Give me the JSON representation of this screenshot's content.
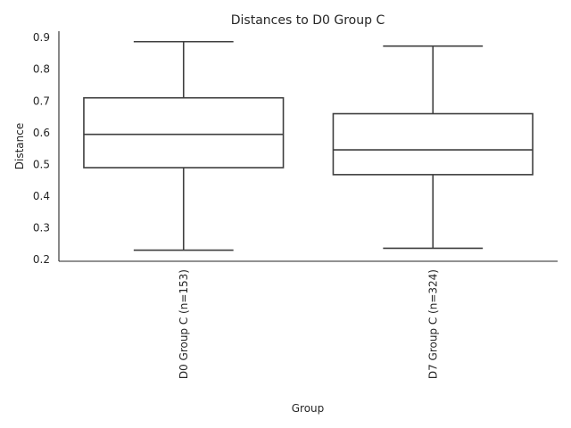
{
  "chart_data": {
    "type": "box",
    "title": "Distances to D0 Group C",
    "xlabel": "Group",
    "ylabel": "Distance",
    "ylim": [
      0.195,
      0.92
    ],
    "yticks": [
      0.2,
      0.3,
      0.4,
      0.5,
      0.6,
      0.7,
      0.8,
      0.9
    ],
    "categories": [
      "D0 Group C (n=153)",
      "D7 Group C (n=324)"
    ],
    "boxes": [
      {
        "category": "D0 Group C (n=153)",
        "whisker_low": 0.23,
        "q1": 0.49,
        "median": 0.595,
        "q3": 0.71,
        "whisker_high": 0.887
      },
      {
        "category": "D7 Group C (n=324)",
        "whisker_low": 0.236,
        "q1": 0.468,
        "median": 0.546,
        "q3": 0.66,
        "whisker_high": 0.873
      }
    ],
    "grid": false,
    "legend": "none",
    "colors": {
      "box_face": "#ffffff",
      "line": "#3f3f3f",
      "text": "#262626"
    }
  }
}
